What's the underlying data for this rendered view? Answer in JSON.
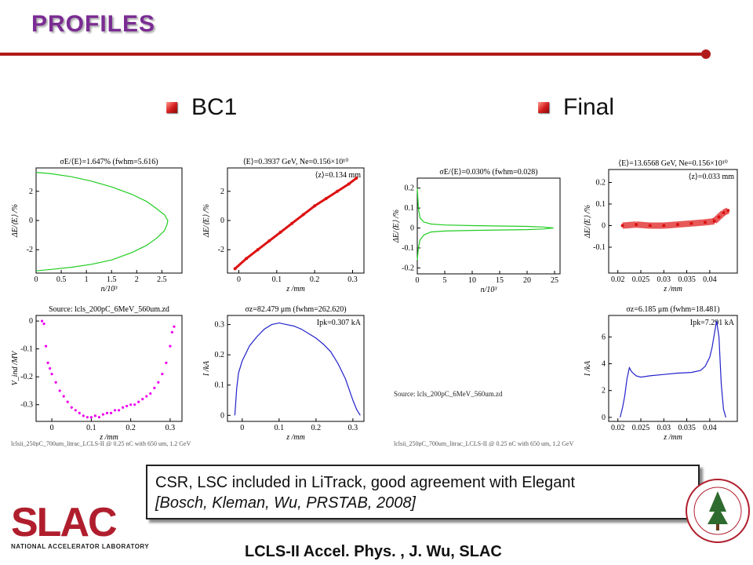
{
  "slide": {
    "title": "PROFILES",
    "sections": [
      "BC1",
      "Final"
    ],
    "callout_line1": "CSR, LSC included in LiTrack, good agreement with Elegant",
    "callout_line2": "[Bosch, Kleman, Wu, PRSTAB, 2008]",
    "footer": "LCLS-II Accel. Phys. , J. Wu, SLAC",
    "logo_text": "SLAC",
    "logo_subtext": "NATIONAL ACCELERATOR LABORATORY",
    "source_label": "Source: lcls_200pC_6MeV_560um.zd",
    "strip_text_left": "lclsii_250pC_700um_litrac_LCLS-II @ 0.25 nC with 650 um, 1.2 GeV",
    "strip_text_right": "lclsii_250pC_700um_litrac_LCLS-II @ 0.25 nC with 650 um, 1.2 GeV",
    "accent_color": "#b21a1a",
    "title_color": "#7b2c93"
  },
  "chart_data": [
    {
      "id": "bc1_energy_spectrum",
      "type": "line",
      "title": "σE/⟨E⟩=1.647% (fwhm=5.616)",
      "xlabel": "n/10³",
      "ylabel": "ΔE/⟨E⟩ /%",
      "xlim": [
        0,
        2.9
      ],
      "ylim": [
        -3.6,
        3.6
      ],
      "xticks": [
        "0",
        "0.5",
        "1",
        "1.5",
        "2",
        "2.5"
      ],
      "xtick_values": [
        0,
        0.5,
        1,
        1.5,
        2,
        2.5
      ],
      "yticks": [
        "2",
        "0",
        "-2"
      ],
      "ytick_values": [
        2,
        0,
        -2
      ],
      "color": "#22cc22",
      "series": [
        {
          "x": [
            0.0,
            0.3,
            0.7,
            1.1,
            1.5,
            1.9,
            2.2,
            2.4,
            2.55,
            2.6,
            2.62,
            2.6,
            2.55,
            2.4,
            2.2,
            1.9,
            1.5,
            1.1,
            0.7,
            0.3,
            0.0
          ],
          "y": [
            3.3,
            3.2,
            3.0,
            2.7,
            2.3,
            1.8,
            1.3,
            0.8,
            0.4,
            0.1,
            0.0,
            -0.3,
            -0.7,
            -1.2,
            -1.7,
            -2.2,
            -2.7,
            -3.0,
            -3.2,
            -3.35,
            -3.45
          ]
        }
      ]
    },
    {
      "id": "bc1_longitudinal_phase_space",
      "type": "scatter",
      "title": "⟨E⟩=0.3937 GeV, Ne=0.156×10¹⁰",
      "annotation": "⟨z⟩=0.134 mm",
      "xlabel": "z /mm",
      "ylabel": "ΔE/⟨E⟩ /%",
      "xlim": [
        -0.03,
        0.33
      ],
      "ylim": [
        -3.6,
        3.6
      ],
      "xticks": [
        "0",
        "0.1",
        "0.2",
        "0.3"
      ],
      "xtick_values": [
        0,
        0.1,
        0.2,
        0.3
      ],
      "yticks": [
        "2",
        "0",
        "-2"
      ],
      "ytick_values": [
        2,
        0,
        -2
      ],
      "color": "#dd1111",
      "series": [
        {
          "x": [
            -0.01,
            0.02,
            0.05,
            0.08,
            0.11,
            0.14,
            0.17,
            0.2,
            0.23,
            0.26,
            0.29,
            0.31
          ],
          "y": [
            -3.3,
            -2.6,
            -2.0,
            -1.4,
            -0.8,
            -0.2,
            0.4,
            1.0,
            1.5,
            2.0,
            2.5,
            2.9
          ]
        }
      ]
    },
    {
      "id": "final_energy_spectrum",
      "type": "line",
      "title": "σE/⟨E⟩=0.030% (fwhm=0.028)",
      "xlabel": "n/10³",
      "ylabel": "ΔE/⟨E⟩ /%",
      "xlim": [
        0,
        26
      ],
      "ylim": [
        -0.23,
        0.25
      ],
      "xticks": [
        "0",
        "5",
        "10",
        "15",
        "20",
        "25"
      ],
      "xtick_values": [
        0,
        5,
        10,
        15,
        20,
        25
      ],
      "yticks": [
        "0.2",
        "0.1",
        "0",
        "-0.1",
        "-0.2"
      ],
      "ytick_values": [
        0.2,
        0.1,
        0,
        -0.1,
        -0.2
      ],
      "color": "#22cc22",
      "series": [
        {
          "x": [
            0.0,
            0.2,
            0.5,
            1.2,
            2.5,
            5,
            10,
            15,
            20,
            23,
            24.8,
            23,
            20,
            15,
            10,
            5,
            2.5,
            1.2,
            0.5,
            0.2,
            0.0
          ],
          "y": [
            0.2,
            0.1,
            0.05,
            0.03,
            0.02,
            0.015,
            0.012,
            0.01,
            0.008,
            0.005,
            0.0,
            -0.005,
            -0.008,
            -0.01,
            -0.012,
            -0.015,
            -0.02,
            -0.035,
            -0.06,
            -0.1,
            -0.16
          ]
        }
      ]
    },
    {
      "id": "final_longitudinal_phase_space",
      "type": "scatter",
      "title": "⟨E⟩=13.6568 GeV, Ne=0.156×10¹⁰",
      "annotation": "⟨z⟩=0.033 mm",
      "xlabel": "z /mm",
      "ylabel": "ΔE/⟨E⟩ /%",
      "xlim": [
        0.018,
        0.046
      ],
      "ylim": [
        -0.22,
        0.26
      ],
      "xticks": [
        "0.02",
        "0.025",
        "0.03",
        "0.035",
        "0.04"
      ],
      "xtick_values": [
        0.02,
        0.025,
        0.03,
        0.035,
        0.04
      ],
      "yticks": [
        "0.2",
        "0.1",
        "0",
        "-0.1"
      ],
      "ytick_values": [
        0.2,
        0.1,
        0,
        -0.1
      ],
      "color": "#dd1111",
      "series": [
        {
          "x": [
            0.021,
            0.024,
            0.027,
            0.03,
            0.033,
            0.036,
            0.039,
            0.041,
            0.042,
            0.043,
            0.044
          ],
          "y": [
            0.0,
            0.005,
            0.0,
            0.0,
            0.005,
            0.01,
            0.015,
            0.02,
            0.04,
            0.06,
            0.07
          ]
        }
      ]
    },
    {
      "id": "bc1_wake_voltage",
      "type": "scatter",
      "title": "Source: lcls_200pC_6MeV_560um.zd",
      "xlabel": "z /mm",
      "ylabel": "V_ind /MV",
      "xlim": [
        -0.04,
        0.33
      ],
      "ylim": [
        -0.36,
        0.02
      ],
      "xticks": [
        "0",
        "0.1",
        "0.2",
        "0.3"
      ],
      "xtick_values": [
        0,
        0.1,
        0.2,
        0.3
      ],
      "yticks": [
        "0",
        "-0.1",
        "-0.2",
        "-0.3"
      ],
      "ytick_values": [
        0,
        -0.1,
        -0.2,
        -0.3
      ],
      "color": "#ee00ee",
      "series": [
        {
          "x": [
            -0.025,
            -0.02,
            -0.015,
            -0.01,
            -0.005,
            0.0,
            0.01,
            0.02,
            0.03,
            0.04,
            0.05,
            0.06,
            0.07,
            0.08,
            0.09,
            0.1,
            0.11,
            0.12,
            0.13,
            0.14,
            0.15,
            0.16,
            0.17,
            0.18,
            0.19,
            0.2,
            0.21,
            0.22,
            0.23,
            0.24,
            0.25,
            0.26,
            0.27,
            0.28,
            0.29,
            0.3,
            0.305,
            0.31
          ],
          "y": [
            -0.0,
            -0.01,
            -0.09,
            -0.15,
            -0.17,
            -0.19,
            -0.22,
            -0.25,
            -0.27,
            -0.29,
            -0.31,
            -0.32,
            -0.33,
            -0.34,
            -0.345,
            -0.345,
            -0.34,
            -0.345,
            -0.335,
            -0.33,
            -0.33,
            -0.32,
            -0.32,
            -0.31,
            -0.305,
            -0.3,
            -0.3,
            -0.29,
            -0.28,
            -0.27,
            -0.26,
            -0.24,
            -0.22,
            -0.19,
            -0.15,
            -0.09,
            -0.04,
            -0.02
          ]
        }
      ]
    },
    {
      "id": "bc1_current",
      "type": "line",
      "title": "σz=82.479 μm (fwhm=262.620)",
      "annotation": "Ipk=0.307 kA",
      "xlabel": "z /mm",
      "ylabel": "I /kA",
      "xlim": [
        -0.04,
        0.33
      ],
      "ylim": [
        -0.02,
        0.33
      ],
      "xticks": [
        "0",
        "0.1",
        "0.2",
        "0.3"
      ],
      "xtick_values": [
        0,
        0.1,
        0.2,
        0.3
      ],
      "yticks": [
        "0.3",
        "0.2",
        "0.1",
        "0"
      ],
      "ytick_values": [
        0.3,
        0.2,
        0.1,
        0
      ],
      "color": "#2222cc",
      "series": [
        {
          "x": [
            -0.02,
            -0.015,
            -0.01,
            0.0,
            0.02,
            0.04,
            0.06,
            0.08,
            0.1,
            0.12,
            0.14,
            0.16,
            0.18,
            0.2,
            0.22,
            0.24,
            0.26,
            0.28,
            0.3,
            0.31,
            0.32
          ],
          "y": [
            0.0,
            0.09,
            0.14,
            0.18,
            0.23,
            0.26,
            0.285,
            0.3,
            0.305,
            0.3,
            0.295,
            0.285,
            0.27,
            0.255,
            0.235,
            0.21,
            0.17,
            0.12,
            0.05,
            0.02,
            0.0
          ]
        }
      ]
    },
    {
      "id": "final_current",
      "type": "line",
      "title": "σz=6.185 μm (fwhm=18.481)",
      "annotation": "Ipk=7.291 kA",
      "xlabel": "z /mm",
      "ylabel": "I /kA",
      "xlim": [
        0.018,
        0.046
      ],
      "ylim": [
        -0.3,
        7.6
      ],
      "xticks": [
        "0.02",
        "0.025",
        "0.03",
        "0.035",
        "0.04"
      ],
      "xtick_values": [
        0.02,
        0.025,
        0.03,
        0.035,
        0.04
      ],
      "yticks": [
        "6",
        "4",
        "2",
        "0"
      ],
      "ytick_values": [
        6,
        4,
        2,
        0
      ],
      "color": "#2222cc",
      "series": [
        {
          "x": [
            0.0205,
            0.021,
            0.0215,
            0.022,
            0.0225,
            0.023,
            0.024,
            0.025,
            0.027,
            0.03,
            0.033,
            0.036,
            0.038,
            0.039,
            0.04,
            0.0405,
            0.041,
            0.0415,
            0.042,
            0.0425,
            0.043,
            0.0435
          ],
          "y": [
            0.0,
            0.7,
            1.6,
            2.9,
            3.7,
            3.4,
            3.1,
            3.0,
            3.1,
            3.2,
            3.3,
            3.35,
            3.5,
            3.8,
            4.5,
            5.2,
            6.2,
            7.2,
            6.0,
            2.5,
            0.6,
            0.0
          ]
        }
      ]
    }
  ]
}
